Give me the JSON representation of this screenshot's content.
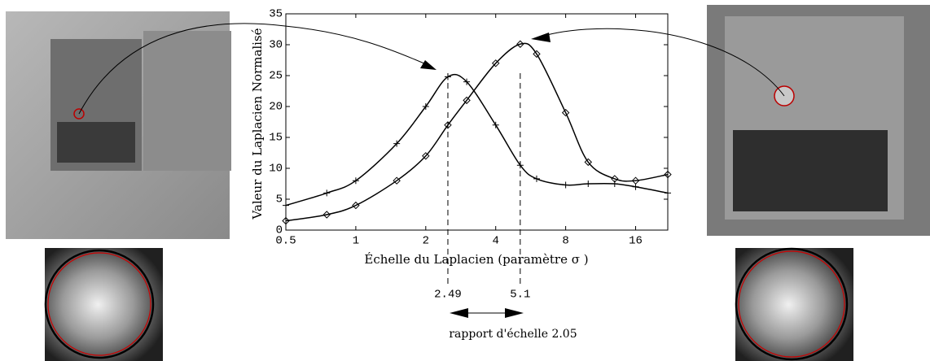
{
  "chart_data": {
    "type": "line",
    "x_label": "Échelle du Laplacien (paramètre σ )",
    "y_label": "Valeur du Laplacien Normalisé",
    "x_log": true,
    "xlim": [
      0.5,
      22
    ],
    "xticks": [
      0.5,
      1,
      2,
      4,
      8,
      16
    ],
    "ylim": [
      0,
      35
    ],
    "yticks": [
      0,
      5,
      10,
      15,
      20,
      25,
      30,
      35
    ],
    "x": [
      0.5,
      0.75,
      1,
      1.5,
      2,
      2.49,
      3,
      4,
      5.1,
      6,
      8,
      10,
      13,
      16,
      22
    ],
    "series": [
      {
        "color": "#000000",
        "marker": "plus",
        "values": [
          4,
          6,
          8,
          14,
          20,
          24.8,
          24,
          17,
          10.5,
          8.3,
          7.3,
          7.5,
          7.5,
          7,
          6
        ]
      },
      {
        "color": "#000000",
        "marker": "diamond",
        "values": [
          1.5,
          2.5,
          4,
          8,
          12,
          17,
          21,
          27,
          30.1,
          28.5,
          19,
          11,
          8.3,
          8,
          9
        ]
      }
    ],
    "peaks": [
      2.49,
      5.1
    ],
    "ratio_label": "rapport d'échelle 2.05"
  }
}
